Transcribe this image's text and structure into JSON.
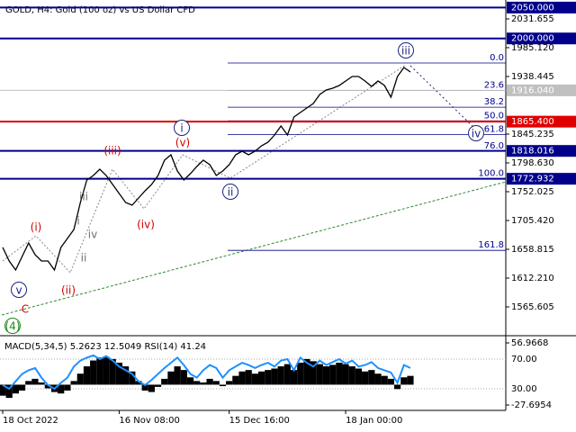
{
  "chart_data": [
    {
      "type": "line",
      "title": "GOLD, H4:  Gold (100 oz) vs US Dollar CFD",
      "categories": [
        "18 Oct 2022",
        null,
        null,
        null,
        null,
        null,
        null,
        null,
        null,
        null,
        null,
        null,
        null,
        null,
        null,
        null,
        null,
        null,
        "16 Nov 08:00",
        null,
        null,
        null,
        null,
        null,
        null,
        null,
        null,
        null,
        null,
        null,
        null,
        null,
        null,
        null,
        null,
        "15 Dec 16:00",
        null,
        null,
        null,
        null,
        null,
        null,
        null,
        null,
        null,
        null,
        null,
        null,
        null,
        null,
        null,
        null,
        null,
        "18 Jan 00:00",
        null,
        null,
        null,
        null,
        null,
        null,
        null,
        null,
        null,
        null
      ],
      "values": [
        1661.8,
        1639.9,
        1625.3,
        1647.2,
        1669.0,
        1650.1,
        1639.9,
        1639.9,
        1625.3,
        1661.8,
        1676.3,
        1690.8,
        1734.5,
        1771.0,
        1778.2,
        1788.4,
        1778.2,
        1763.7,
        1749.1,
        1734.5,
        1730.2,
        1741.8,
        1753.5,
        1763.7,
        1778.2,
        1803.0,
        1811.7,
        1785.5,
        1771.0,
        1781.1,
        1792.8,
        1803.0,
        1795.7,
        1778.2,
        1785.5,
        1795.7,
        1811.7,
        1817.6,
        1811.7,
        1817.6,
        1826.3,
        1832.1,
        1843.8,
        1858.3,
        1843.8,
        1872.9,
        1880.2,
        1887.5,
        1894.7,
        1909.3,
        1916.6,
        1919.5,
        1923.9,
        1931.2,
        1938.4,
        1938.4,
        1931.2,
        1922.4,
        1931.2,
        1923.9,
        1905.0,
        1938.4,
        1953.0,
        1945.7
      ],
      "color": "#000000",
      "ylim": [
        1523.35,
        2062.24
      ],
      "yticks": [
        {
          "value": 2031.655,
          "label": "2031.655"
        },
        {
          "value": 1985.12,
          "label": "1985.120"
        },
        1938.445,
        1845.235,
        {
          "value": 1798.63,
          "label": "1798.630"
        },
        1752.025,
        {
          "value": 1705.42,
          "label": "1705.420"
        },
        1658.815,
        {
          "value": 1612.21,
          "label": "1612.210"
        },
        1565.605
      ],
      "levels": [
        {
          "value": 2050,
          "label": "2050.000"
        },
        {
          "value": 2000,
          "label": "2000.000"
        },
        {
          "value": 1865.4,
          "label": "1865.400"
        },
        1818.016,
        1772.932
      ],
      "level_colors": [
        "#00008b",
        "#00008b",
        "#e00000",
        "#00008b",
        "#00008b"
      ],
      "bid": {
        "value": 1916.04,
        "label": "1916.040"
      },
      "fib": {
        "levels": [
          {
            "value": 0,
            "label": "0.0"
          },
          23.6,
          38.2,
          {
            "value": 50,
            "label": "50.0"
          },
          61.8,
          {
            "value": 76,
            "label": "76.0"
          },
          {
            "value": 100,
            "label": "100.0"
          },
          161.8
        ],
        "prices": [
          1960.3,
          1916.1,
          1888.7,
          1866.6,
          1844.5,
          1817.9,
          1772.9,
          1657.1
        ],
        "color": "#00008b"
      },
      "annotations": [
        {
          "text": "(i)",
          "color": "#d50000",
          "circled": false
        },
        {
          "text": "(ii)",
          "color": "#d50000",
          "circled": false
        },
        {
          "text": "(iii)",
          "color": "#d50000",
          "circled": false
        },
        {
          "text": "(iv)",
          "color": "#d50000",
          "circled": false
        },
        {
          "text": "(v)",
          "color": "#d50000",
          "circled": false
        },
        {
          "text": "i",
          "color": "#1a237e",
          "circled": true
        },
        {
          "text": "ii",
          "color": "#1a237e",
          "circled": true
        },
        {
          "text": "iii",
          "color": "#1a237e",
          "circled": true
        },
        {
          "text": "iv",
          "color": "#1a237e",
          "circled": true
        },
        {
          "text": "v",
          "color": "#1a237e",
          "circled": true
        },
        {
          "text": "i",
          "color": "#707070",
          "circled": false
        },
        {
          "text": "ii",
          "color": "#707070",
          "circled": false
        },
        {
          "text": "iii",
          "color": "#707070",
          "circled": false
        },
        {
          "text": "iv",
          "color": "#707070",
          "circled": false
        },
        {
          "text": "C",
          "color": "#d50000",
          "circled": false
        },
        {
          "text": "(4)",
          "color": "#1b8a1b",
          "circled": true
        }
      ]
    },
    {
      "type": "macd",
      "title": "MACD(5,34,5) 5.2623 12.5049 RSI(14) 41.24",
      "series": [
        {
          "color": "#000000",
          "values": [
            -15,
            -18,
            -12,
            -8,
            5,
            8,
            3,
            -5,
            -10,
            -12,
            -8,
            5,
            15,
            25,
            33,
            37,
            38,
            35,
            30,
            25,
            18,
            5,
            -8,
            -10,
            -3,
            8,
            18,
            25,
            20,
            10,
            5,
            3,
            8,
            5,
            -2,
            5,
            12,
            18,
            20,
            15,
            18,
            20,
            22,
            25,
            28,
            20,
            30,
            35,
            32,
            28,
            25,
            27,
            30,
            28,
            25,
            22,
            18,
            20,
            15,
            12,
            8,
            -6,
            10,
            12
          ]
        },
        {
          "color": "#1e90ff",
          "axis": "y2",
          "values": [
            35,
            30,
            40,
            50,
            55,
            58,
            45,
            35,
            30,
            38,
            45,
            60,
            68,
            72,
            75,
            70,
            74,
            68,
            60,
            55,
            50,
            40,
            35,
            42,
            50,
            58,
            65,
            72,
            62,
            50,
            45,
            55,
            62,
            58,
            45,
            55,
            60,
            65,
            62,
            58,
            62,
            65,
            60,
            68,
            70,
            55,
            72,
            65,
            60,
            68,
            62,
            66,
            70,
            64,
            68,
            60,
            62,
            66,
            58,
            55,
            52,
            38,
            62,
            58
          ]
        }
      ],
      "ylim": [
        -35.06,
        64.33
      ],
      "yticks": [
        56.9668,
        -27.6954
      ],
      "y2lim": [
        0.9,
        99.1
      ],
      "y2ticks": [
        {
          "value": 70,
          "label": "70.00"
        },
        {
          "value": 30,
          "label": "30.00"
        }
      ]
    }
  ]
}
